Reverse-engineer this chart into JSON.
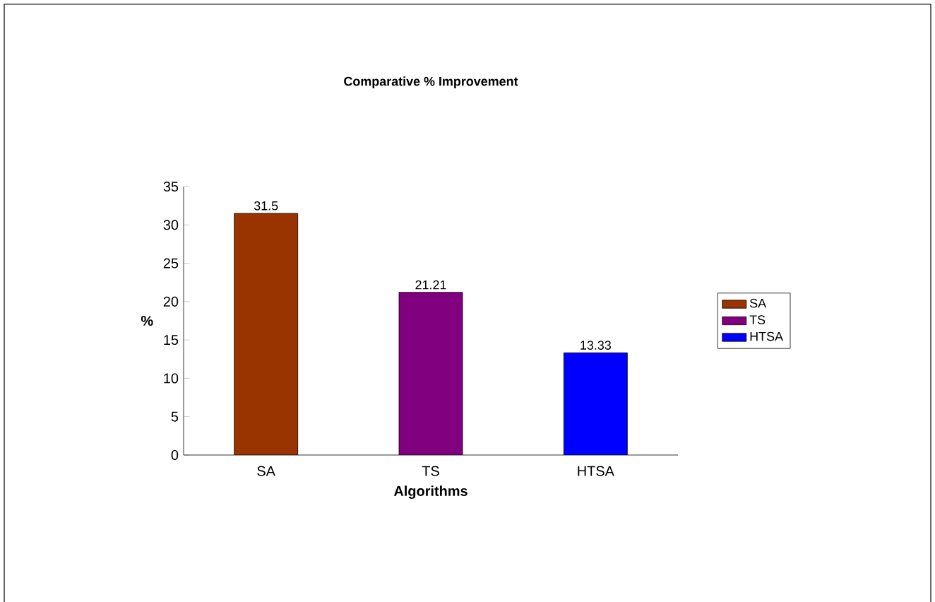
{
  "chart_data": {
    "type": "bar",
    "title": "Comparative % Improvement",
    "xlabel": "Algorithms",
    "ylabel": "%",
    "categories": [
      "SA",
      "TS",
      "HTSA"
    ],
    "series": [
      {
        "name": "SA",
        "color": "#993300",
        "values": [
          31.5,
          null,
          null
        ]
      },
      {
        "name": "TS",
        "color": "#800080",
        "values": [
          null,
          21.21,
          null
        ]
      },
      {
        "name": "HTSA",
        "color": "#0000ff",
        "values": [
          null,
          null,
          13.33
        ]
      }
    ],
    "ylim": [
      0,
      35
    ],
    "yticks": [
      0,
      5,
      10,
      15,
      20,
      25,
      30,
      35
    ],
    "data_labels": true,
    "legend": "right"
  }
}
